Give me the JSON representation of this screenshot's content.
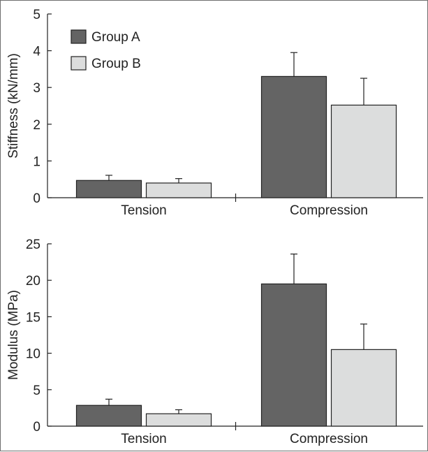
{
  "colors": {
    "group_a": "#646464",
    "group_b": "#dcdddd",
    "ink": "#222222",
    "frame": "#6e6e6e"
  },
  "chart_data": [
    {
      "type": "bar",
      "ylabel": "Stiffness (kN/mm)",
      "xlabel": "",
      "categories": [
        "Tension",
        "Compression"
      ],
      "ylim": [
        0,
        5
      ],
      "yticks": [
        "0",
        "1",
        "2",
        "3",
        "4",
        "5"
      ],
      "series": [
        {
          "name": "Group A",
          "values": [
            0.47,
            3.3
          ],
          "errors": [
            0.14,
            0.65
          ]
        },
        {
          "name": "Group B",
          "values": [
            0.4,
            2.52
          ],
          "errors": [
            0.12,
            0.73
          ]
        }
      ],
      "legend": {
        "position": "top-left",
        "entries": [
          "Group A",
          "Group B"
        ]
      },
      "grid": false
    },
    {
      "type": "bar",
      "ylabel": "Modulus (MPa)",
      "xlabel": "",
      "categories": [
        "Tension",
        "Compression"
      ],
      "ylim": [
        0,
        25
      ],
      "yticks": [
        "0",
        "5",
        "10",
        "15",
        "20",
        "25"
      ],
      "series": [
        {
          "name": "Group A",
          "values": [
            2.85,
            19.5
          ],
          "errors": [
            0.85,
            4.1
          ]
        },
        {
          "name": "Group B",
          "values": [
            1.7,
            10.5
          ],
          "errors": [
            0.55,
            3.5
          ]
        }
      ],
      "grid": false
    }
  ]
}
